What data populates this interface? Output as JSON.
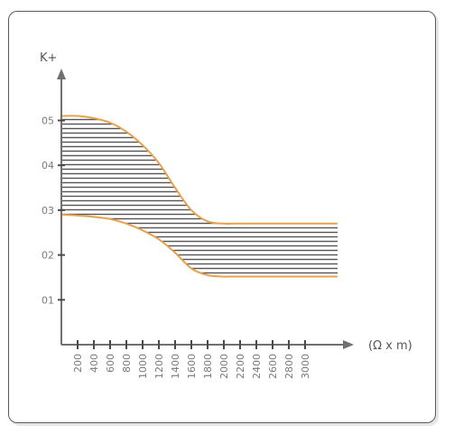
{
  "chart_data": {
    "type": "area",
    "title": "",
    "xlabel": "(Ω x m)",
    "ylabel": "K+",
    "x_ticks": [
      "200",
      "400",
      "600",
      "800",
      "1000",
      "1200",
      "1400",
      "1600",
      "1800",
      "2000",
      "2200",
      "2400",
      "2600",
      "2800",
      "3000"
    ],
    "y_ticks": [
      "01",
      "02",
      "03",
      "04",
      "05"
    ],
    "xlim": [
      0,
      3400
    ],
    "ylim": [
      0,
      0.6
    ],
    "series": [
      {
        "x": [
          0,
          200,
          400,
          600,
          800,
          1000,
          1200,
          1400,
          1600,
          1800,
          2000,
          2200,
          3400
        ],
        "y_upper": [
          0.51,
          0.51,
          0.505,
          0.495,
          0.475,
          0.445,
          0.405,
          0.35,
          0.3,
          0.275,
          0.27,
          0.27,
          0.27
        ],
        "y_lower": [
          0.29,
          0.288,
          0.285,
          0.28,
          0.27,
          0.255,
          0.235,
          0.205,
          0.17,
          0.155,
          0.152,
          0.152,
          0.152
        ]
      }
    ],
    "colors": {
      "outline": "#e8a24e",
      "hatch": "#555555",
      "axis": "#707070"
    }
  }
}
